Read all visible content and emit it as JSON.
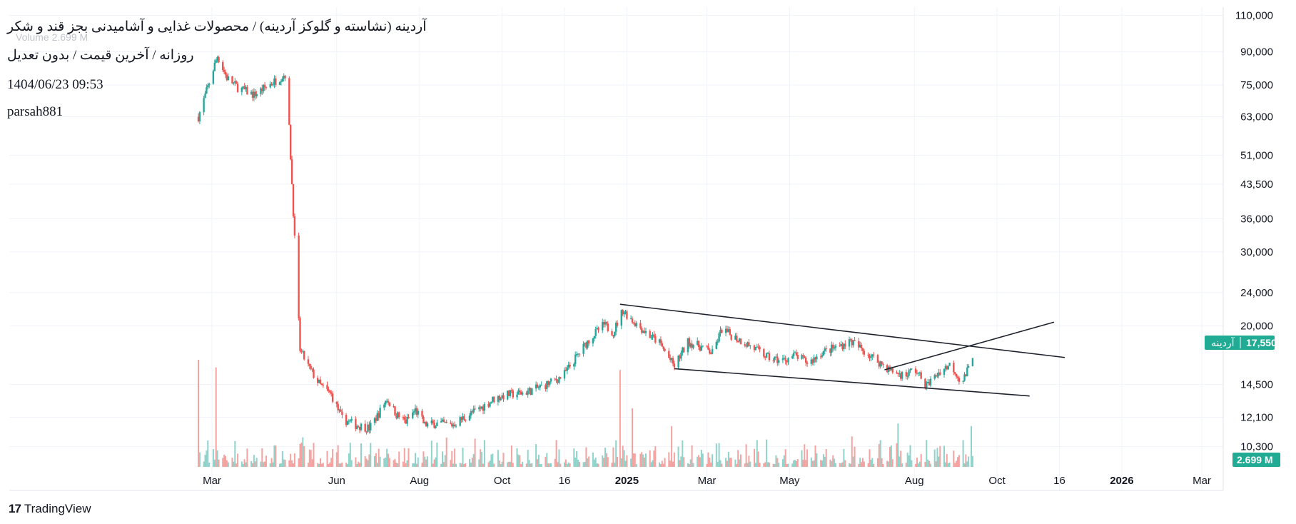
{
  "header": {
    "title": "آردینه (نشاسته و گلوکز آردینه) / محصولات غذایی و آشامیدنی بجز قند و شکر",
    "subtitle": "روزانه / آخرین قیمت / بدون تعدیل",
    "datetime": "1404/06/23 09:53",
    "author": "parsah881",
    "volume_label": "Volume",
    "volume_value": "2.699 M"
  },
  "branding": {
    "logo_mark": "17",
    "name": "TradingView"
  },
  "colors": {
    "up": "#26a69a",
    "down": "#ef5350",
    "up_volume": "#8fd3cb",
    "down_volume": "#f5a3a1",
    "trendline": "#1e222d",
    "grid": "#f0f3fa"
  },
  "chart_data": {
    "type": "candlestick",
    "y_scale": "log",
    "ylim": [
      9000,
      115000
    ],
    "y_ticks": [
      "110,000",
      "90,000",
      "75,000",
      "63,000",
      "51,000",
      "43,500",
      "36,000",
      "30,000",
      "24,000",
      "20,000",
      "17,550",
      "14,500",
      "12,100",
      "10,300"
    ],
    "x_ticks": [
      {
        "label": "Mar",
        "bold": false
      },
      {
        "label": "Jun",
        "bold": false
      },
      {
        "label": "Aug",
        "bold": false
      },
      {
        "label": "Oct",
        "bold": false
      },
      {
        "label": "16",
        "bold": false
      },
      {
        "label": "2025",
        "bold": true
      },
      {
        "label": "Mar",
        "bold": false
      },
      {
        "label": "May",
        "bold": false
      },
      {
        "label": "Aug",
        "bold": false
      },
      {
        "label": "Oct",
        "bold": false
      },
      {
        "label": "16",
        "bold": false
      },
      {
        "label": "2026",
        "bold": true
      },
      {
        "label": "Mar",
        "bold": false
      }
    ],
    "last_price": {
      "symbol": "آردینه",
      "value": "17,550"
    },
    "last_volume": "2.699 M",
    "price_path": [
      [
        "2024-02-20",
        63000
      ],
      [
        "2024-02-28",
        76000
      ],
      [
        "2024-03-05",
        88000
      ],
      [
        "2024-03-12",
        78000
      ],
      [
        "2024-03-20",
        74000
      ],
      [
        "2024-04-01",
        71000
      ],
      [
        "2024-04-12",
        75000
      ],
      [
        "2024-04-25",
        80000
      ],
      [
        "2024-05-05",
        17500
      ],
      [
        "2024-05-12",
        15800
      ],
      [
        "2024-05-20",
        14400
      ],
      [
        "2024-05-28",
        13700
      ],
      [
        "2024-06-05",
        12000
      ],
      [
        "2024-06-15",
        11600
      ],
      [
        "2024-06-25",
        11400
      ],
      [
        "2024-07-01",
        12200
      ],
      [
        "2024-07-08",
        13400
      ],
      [
        "2024-07-15",
        12300
      ],
      [
        "2024-07-22",
        11800
      ],
      [
        "2024-07-29",
        12600
      ],
      [
        "2024-08-05",
        11600
      ],
      [
        "2024-08-15",
        11700
      ],
      [
        "2024-08-25",
        11600
      ],
      [
        "2024-09-05",
        12200
      ],
      [
        "2024-09-15",
        12700
      ],
      [
        "2024-09-25",
        13400
      ],
      [
        "2024-10-05",
        13700
      ],
      [
        "2024-10-15",
        13800
      ],
      [
        "2024-10-25",
        14100
      ],
      [
        "2024-11-05",
        14600
      ],
      [
        "2024-11-15",
        15200
      ],
      [
        "2024-11-25",
        16900
      ],
      [
        "2024-12-05",
        18700
      ],
      [
        "2024-12-15",
        20100
      ],
      [
        "2024-12-22",
        19300
      ],
      [
        "2024-12-29",
        21800
      ],
      [
        "2025-01-05",
        20600
      ],
      [
        "2025-01-15",
        19300
      ],
      [
        "2025-01-25",
        18200
      ],
      [
        "2025-02-05",
        16000
      ],
      [
        "2025-02-15",
        18300
      ],
      [
        "2025-02-25",
        17800
      ],
      [
        "2025-03-05",
        17200
      ],
      [
        "2025-03-12",
        19600
      ],
      [
        "2025-03-20",
        18900
      ],
      [
        "2025-04-01",
        18000
      ],
      [
        "2025-04-15",
        16800
      ],
      [
        "2025-04-25",
        16500
      ],
      [
        "2025-05-05",
        17000
      ],
      [
        "2025-05-15",
        16300
      ],
      [
        "2025-05-25",
        17300
      ],
      [
        "2025-06-05",
        17800
      ],
      [
        "2025-06-15",
        18400
      ],
      [
        "2025-06-22",
        17700
      ],
      [
        "2025-07-15",
        15600
      ],
      [
        "2025-07-25",
        15200
      ],
      [
        "2025-08-01",
        15800
      ],
      [
        "2025-08-10",
        14400
      ],
      [
        "2025-08-20",
        15600
      ],
      [
        "2025-08-28",
        16200
      ],
      [
        "2025-09-05",
        14600
      ],
      [
        "2025-09-10",
        15800
      ],
      [
        "2025-09-14",
        17550
      ]
    ],
    "volume_spikes": [
      [
        "2024-02-20",
        4.2
      ],
      [
        "2024-03-04",
        3.9
      ],
      [
        "2024-05-05",
        0.9
      ],
      [
        "2024-12-27",
        3.8
      ],
      [
        "2025-01-05",
        2.3
      ],
      [
        "2025-02-03",
        1.6
      ],
      [
        "2025-07-20",
        1.7
      ],
      [
        "2025-09-12",
        1.6
      ]
    ],
    "trendlines": [
      {
        "from": [
          "2024-12-27",
          22500
        ],
        "to": [
          "2025-11-20",
          16800
        ]
      },
      {
        "from": [
          "2025-02-05",
          15800
        ],
        "to": [
          "2025-10-25",
          13600
        ]
      },
      {
        "from": [
          "2025-07-10",
          15700
        ],
        "to": [
          "2025-11-12",
          20400
        ]
      }
    ]
  }
}
